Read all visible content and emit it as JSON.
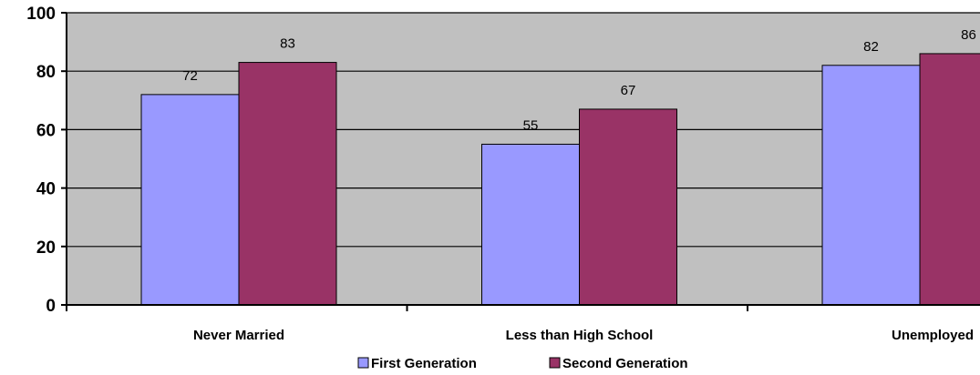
{
  "chart_data": {
    "type": "bar",
    "categories": [
      "Never Married",
      "Less than High School",
      "Unemployed"
    ],
    "series": [
      {
        "name": "First Generation",
        "values": [
          72,
          55,
          82
        ],
        "color": "#9999FF"
      },
      {
        "name": "Second Generation",
        "values": [
          83,
          67,
          86
        ],
        "color": "#993366"
      }
    ],
    "ylim": [
      0,
      100
    ],
    "yticks": [
      0,
      20,
      40,
      60,
      80,
      100
    ],
    "grid": true,
    "plot_background": "#C0C0C0",
    "legend_position": "bottom"
  }
}
